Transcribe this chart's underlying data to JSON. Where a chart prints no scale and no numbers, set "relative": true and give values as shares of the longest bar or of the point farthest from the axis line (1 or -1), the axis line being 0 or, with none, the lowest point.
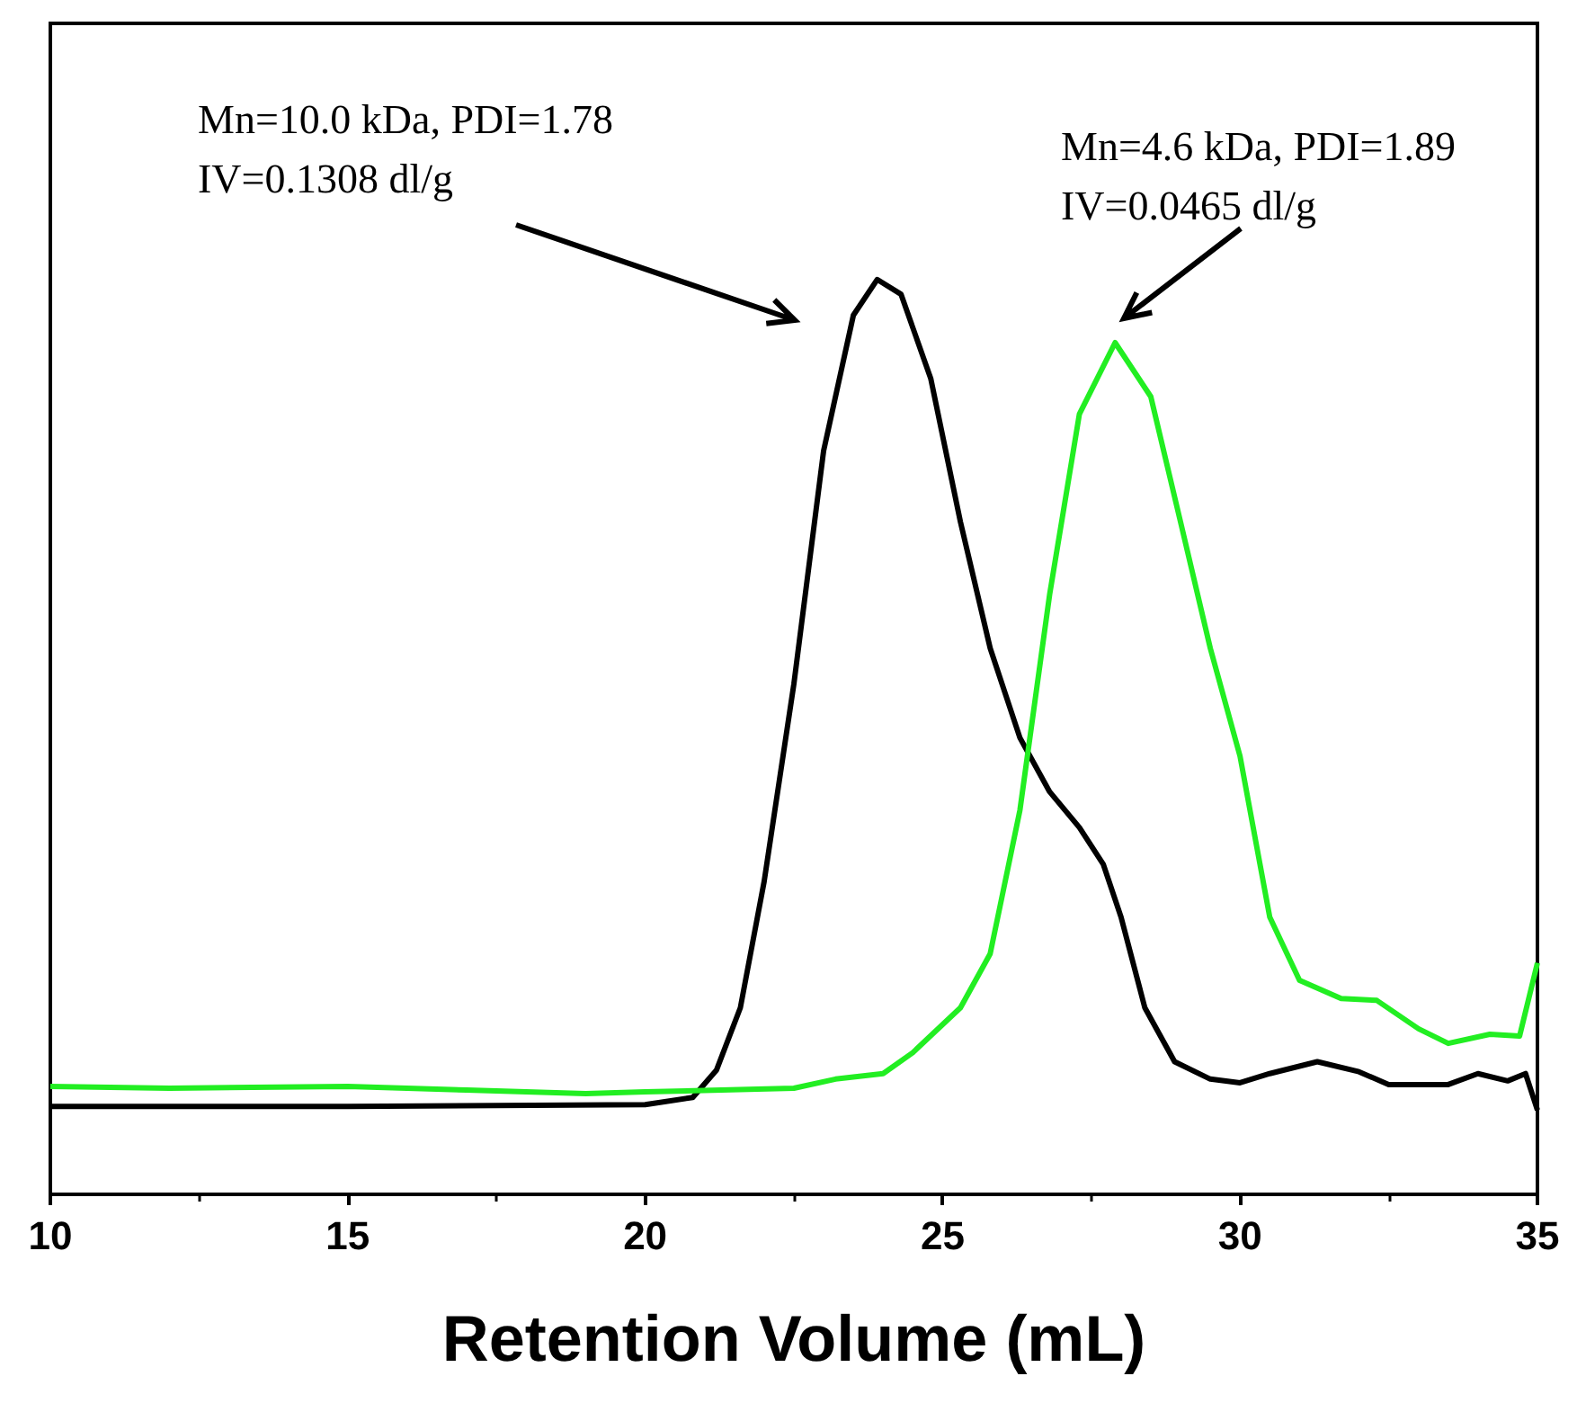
{
  "chart_data": {
    "type": "line",
    "relative": true,
    "xlabel": "Retention Volume (mL)",
    "xlim": [
      10,
      35
    ],
    "xticks": [
      10,
      15,
      20,
      25,
      30,
      35
    ],
    "grid": false,
    "marker": "none",
    "line_style": "solid",
    "annotations": [
      "Mn=10.0 kDa, PDI=1.78\nIV=0.1308 dl/g",
      "Mn=4.6 kDa, PDI=1.89\nIV=0.0465 dl/g"
    ],
    "series": [
      {
        "color": "#000000",
        "x": [
          10,
          15,
          20,
          20.8,
          21.2,
          21.6,
          22,
          22.5,
          23,
          23.5,
          23.9,
          24.3,
          24.8,
          25.3,
          25.8,
          26.3,
          26.8,
          27.3,
          27.7,
          28,
          28.4,
          28.9,
          29.5,
          30,
          30.5,
          31.3,
          32,
          32.5,
          33.5,
          34,
          34.5,
          34.8,
          35
        ],
        "values": [
          0.096,
          0.096,
          0.098,
          0.106,
          0.136,
          0.204,
          0.342,
          0.558,
          0.813,
          0.961,
          1,
          0.984,
          0.892,
          0.735,
          0.597,
          0.499,
          0.44,
          0.401,
          0.361,
          0.303,
          0.204,
          0.145,
          0.126,
          0.122,
          0.132,
          0.145,
          0.134,
          0.12,
          0.12,
          0.132,
          0.124,
          0.132,
          0.092
        ]
      },
      {
        "color": "#22ee22",
        "x": [
          10,
          12,
          15,
          17,
          19,
          20,
          22.5,
          23.2,
          24,
          24.5,
          25.3,
          25.8,
          26.3,
          26.8,
          27.3,
          27.9,
          28.5,
          29,
          29.5,
          30,
          30.5,
          31,
          31.7,
          32.3,
          33,
          33.5,
          34.2,
          34.7,
          35
        ],
        "values": [
          0.118,
          0.116,
          0.118,
          0.114,
          0.11,
          0.112,
          0.116,
          0.126,
          0.132,
          0.155,
          0.204,
          0.263,
          0.42,
          0.656,
          0.853,
          0.931,
          0.872,
          0.735,
          0.597,
          0.479,
          0.303,
          0.234,
          0.214,
          0.212,
          0.181,
          0.165,
          0.175,
          0.173,
          0.253
        ]
      }
    ]
  }
}
